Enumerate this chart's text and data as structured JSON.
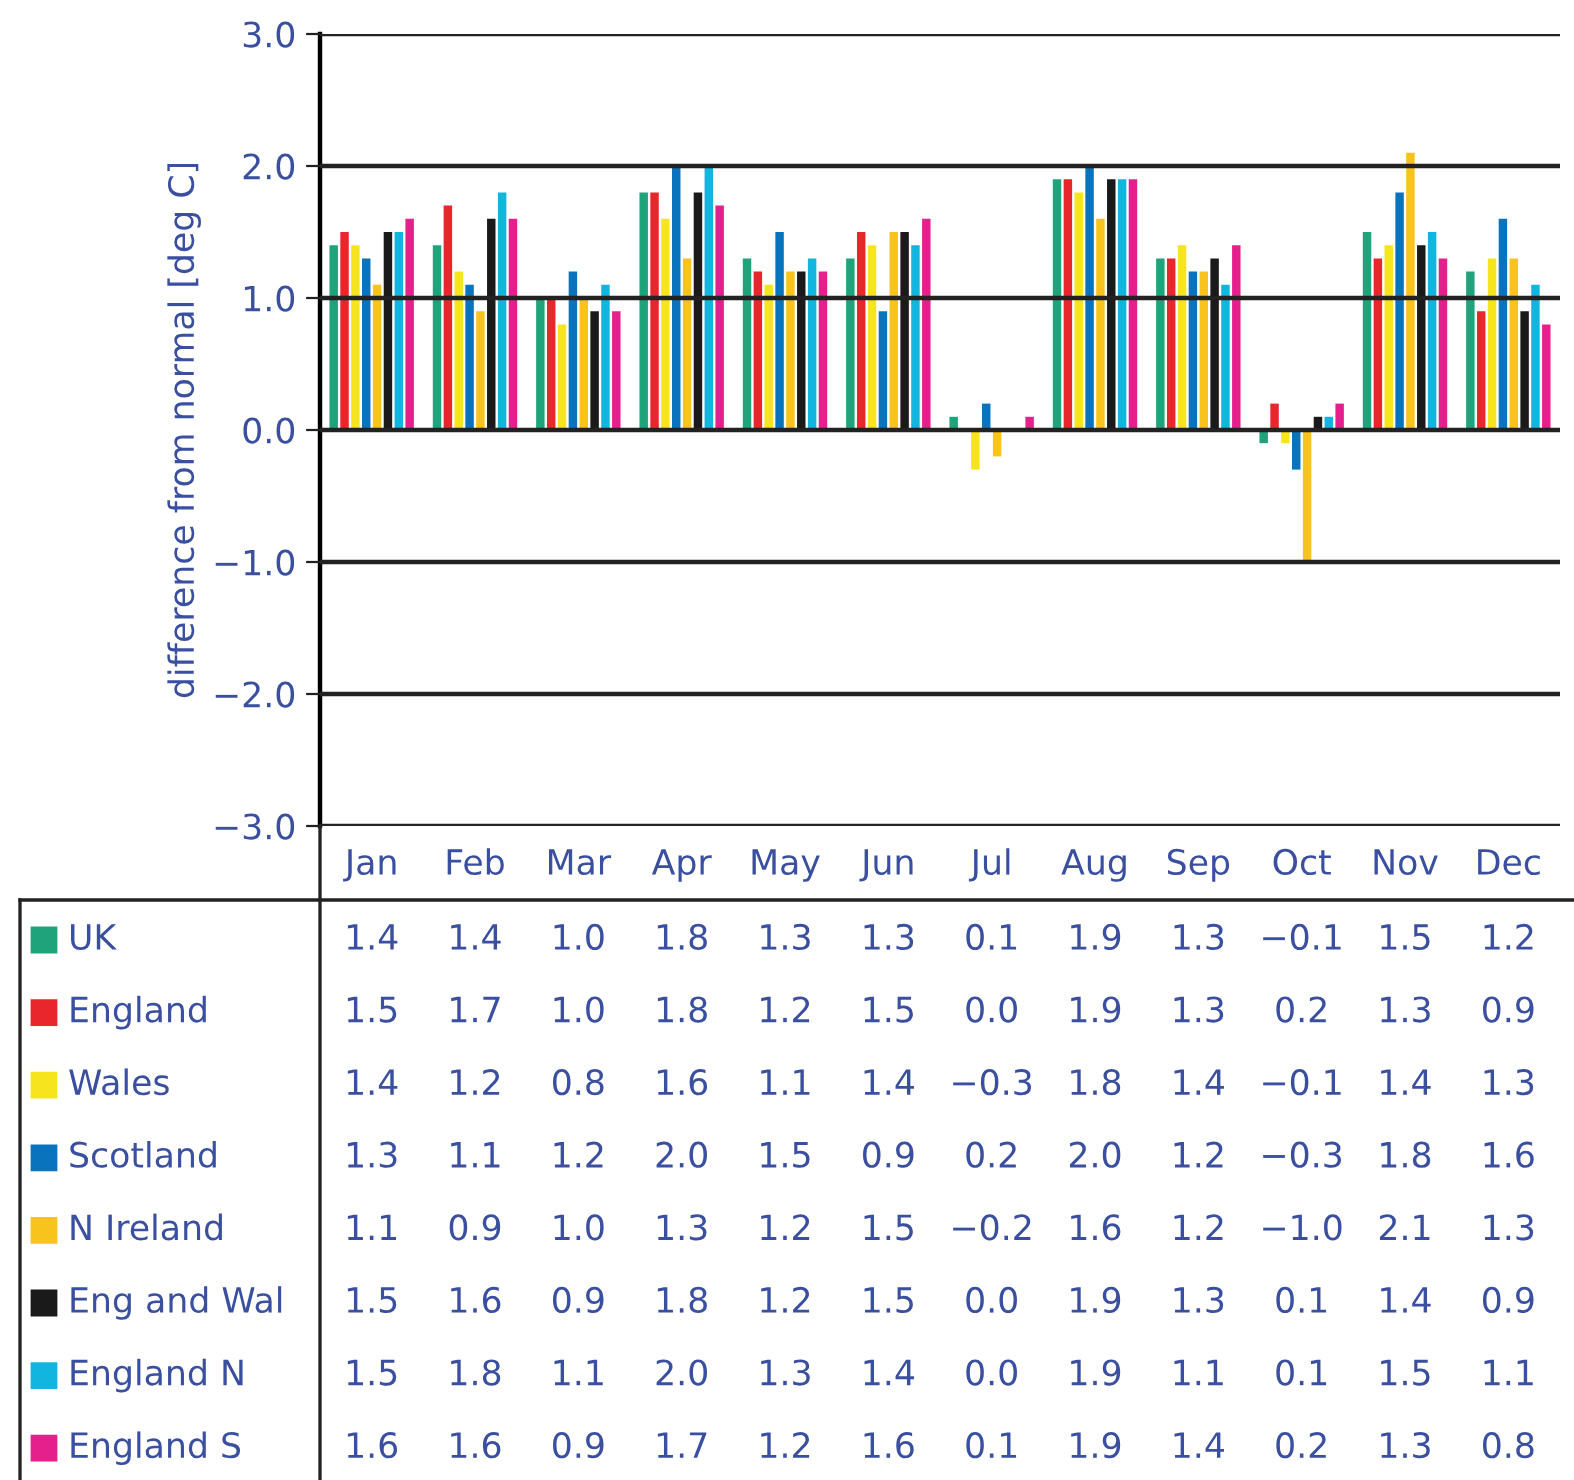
{
  "chart_data": {
    "type": "bar",
    "ylabel": "difference from normal [deg C]",
    "categories": [
      "Jan",
      "Feb",
      "Mar",
      "Apr",
      "May",
      "Jun",
      "Jul",
      "Aug",
      "Sep",
      "Oct",
      "Nov",
      "Dec"
    ],
    "series": [
      {
        "name": "UK",
        "color": "#1fa37a",
        "values": [
          1.4,
          1.4,
          1.0,
          1.8,
          1.3,
          1.3,
          0.1,
          1.9,
          1.3,
          -0.1,
          1.5,
          1.2
        ],
        "value_labels": [
          "1.4",
          "1.4",
          "1.0",
          "1.8",
          "1.3",
          "1.3",
          "0.1",
          "1.9",
          "1.3",
          "−0.1",
          "1.5",
          "1.2"
        ]
      },
      {
        "name": "England",
        "color": "#e8262b",
        "values": [
          1.5,
          1.7,
          1.0,
          1.8,
          1.2,
          1.5,
          0.0,
          1.9,
          1.3,
          0.2,
          1.3,
          0.9
        ],
        "value_labels": [
          "1.5",
          "1.7",
          "1.0",
          "1.8",
          "1.2",
          "1.5",
          "0.0",
          "1.9",
          "1.3",
          "0.2",
          "1.3",
          "0.9"
        ]
      },
      {
        "name": "Wales",
        "color": "#f6e51e",
        "values": [
          1.4,
          1.2,
          0.8,
          1.6,
          1.1,
          1.4,
          -0.3,
          1.8,
          1.4,
          -0.1,
          1.4,
          1.3
        ],
        "value_labels": [
          "1.4",
          "1.2",
          "0.8",
          "1.6",
          "1.1",
          "1.4",
          "−0.3",
          "1.8",
          "1.4",
          "−0.1",
          "1.4",
          "1.3"
        ]
      },
      {
        "name": "Scotland",
        "color": "#0a73bd",
        "values": [
          1.3,
          1.1,
          1.2,
          2.0,
          1.5,
          0.9,
          0.2,
          2.0,
          1.2,
          -0.3,
          1.8,
          1.6
        ],
        "value_labels": [
          "1.3",
          "1.1",
          "1.2",
          "2.0",
          "1.5",
          "0.9",
          "0.2",
          "2.0",
          "1.2",
          "−0.3",
          "1.8",
          "1.6"
        ]
      },
      {
        "name": "N Ireland",
        "color": "#f9c31e",
        "values": [
          1.1,
          0.9,
          1.0,
          1.3,
          1.2,
          1.5,
          -0.2,
          1.6,
          1.2,
          -1.0,
          2.1,
          1.3
        ],
        "value_labels": [
          "1.1",
          "0.9",
          "1.0",
          "1.3",
          "1.2",
          "1.5",
          "−0.2",
          "1.6",
          "1.2",
          "−1.0",
          "2.1",
          "1.3"
        ]
      },
      {
        "name": "Eng and Wal",
        "color": "#1a1a1a",
        "values": [
          1.5,
          1.6,
          0.9,
          1.8,
          1.2,
          1.5,
          0.0,
          1.9,
          1.3,
          0.1,
          1.4,
          0.9
        ],
        "value_labels": [
          "1.5",
          "1.6",
          "0.9",
          "1.8",
          "1.2",
          "1.5",
          "0.0",
          "1.9",
          "1.3",
          "0.1",
          "1.4",
          "0.9"
        ]
      },
      {
        "name": "England N",
        "color": "#12b5dd",
        "values": [
          1.5,
          1.8,
          1.1,
          2.0,
          1.3,
          1.4,
          0.0,
          1.9,
          1.1,
          0.1,
          1.5,
          1.1
        ],
        "value_labels": [
          "1.5",
          "1.8",
          "1.1",
          "2.0",
          "1.3",
          "1.4",
          "0.0",
          "1.9",
          "1.1",
          "0.1",
          "1.5",
          "1.1"
        ]
      },
      {
        "name": "England S",
        "color": "#e5208c",
        "values": [
          1.6,
          1.6,
          0.9,
          1.7,
          1.2,
          1.6,
          0.1,
          1.9,
          1.4,
          0.2,
          1.3,
          0.8
        ],
        "value_labels": [
          "1.6",
          "1.6",
          "0.9",
          "1.7",
          "1.2",
          "1.6",
          "0.1",
          "1.9",
          "1.4",
          "0.2",
          "1.3",
          "0.8"
        ]
      }
    ],
    "ylim": [
      -3.0,
      3.0
    ],
    "yticks": [
      {
        "value": -3.0,
        "label": "−3.0"
      },
      {
        "value": -2.0,
        "label": "−2.0"
      },
      {
        "value": -1.0,
        "label": "−1.0"
      },
      {
        "value": 0.0,
        "label": "0.0"
      },
      {
        "value": 1.0,
        "label": "1.0"
      },
      {
        "value": 2.0,
        "label": "2.0"
      },
      {
        "value": 3.0,
        "label": "3.0"
      }
    ],
    "grid": "y",
    "legend": "bottom"
  }
}
